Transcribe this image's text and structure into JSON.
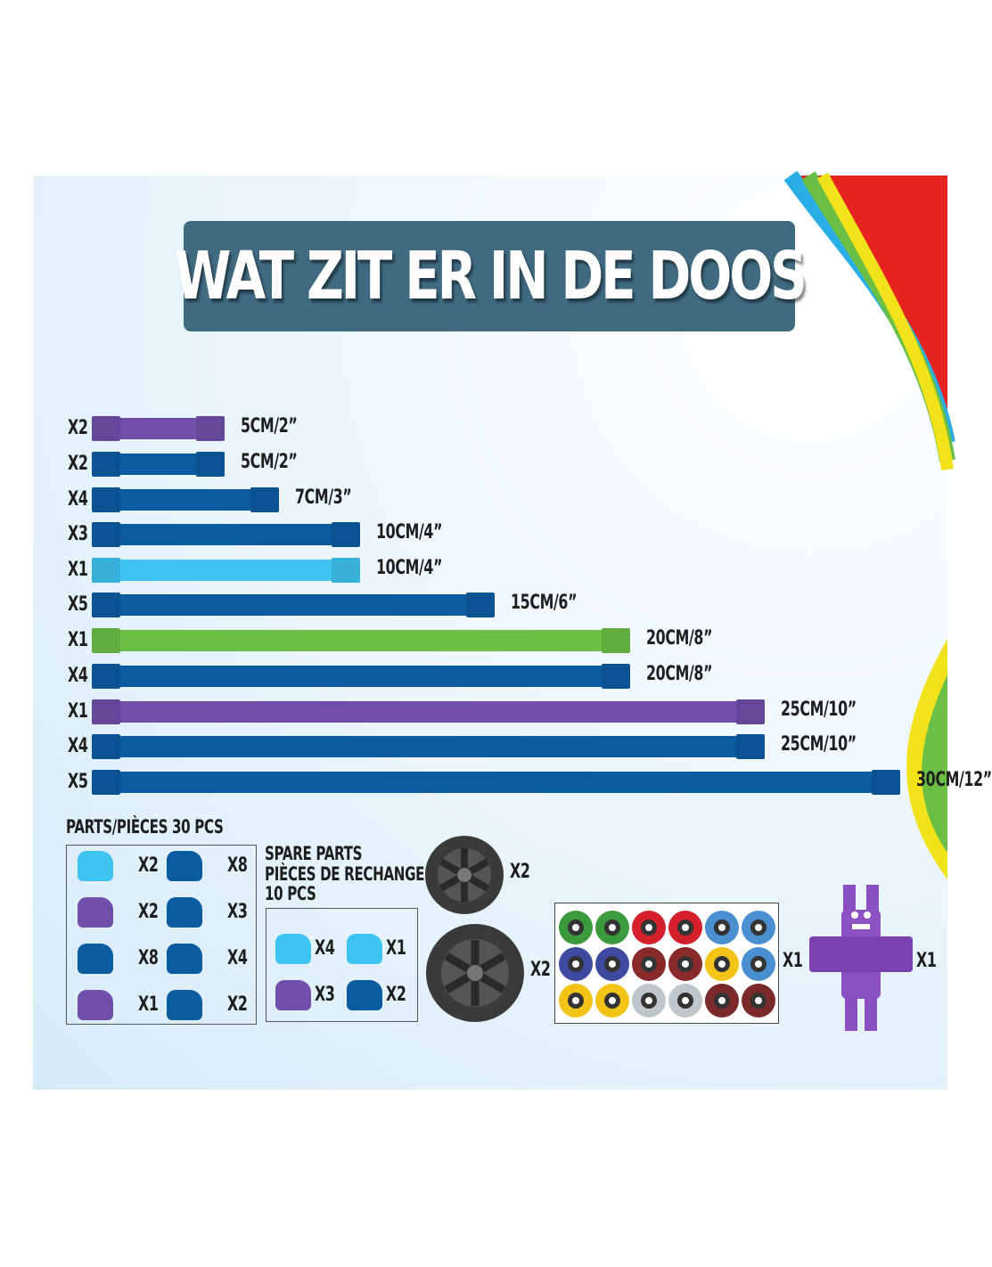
{
  "title": "WAT ZIT ER IN DE DOOS",
  "colors": {
    "purple": "#6f4fa9",
    "blue": "#0b5ba1",
    "light_blue": "#3fc4f2",
    "green": "#6cbf45",
    "title_bg": "#3f6a80"
  },
  "rods": [
    {
      "qty": "X2",
      "size": "5CM/2”",
      "color": "purple",
      "len": 5
    },
    {
      "qty": "X2",
      "size": "5CM/2”",
      "color": "blue",
      "len": 5
    },
    {
      "qty": "X4",
      "size": "7CM/3”",
      "color": "blue",
      "len": 7
    },
    {
      "qty": "X3",
      "size": "10CM/4”",
      "color": "blue",
      "len": 10
    },
    {
      "qty": "X1",
      "size": "10CM/4”",
      "color": "light_blue",
      "len": 10
    },
    {
      "qty": "X5",
      "size": "15CM/6”",
      "color": "blue",
      "len": 15
    },
    {
      "qty": "X1",
      "size": "20CM/8”",
      "color": "green",
      "len": 20
    },
    {
      "qty": "X4",
      "size": "20CM/8”",
      "color": "blue",
      "len": 20
    },
    {
      "qty": "X1",
      "size": "25CM/10”",
      "color": "purple",
      "len": 25
    },
    {
      "qty": "X4",
      "size": "25CM/10”",
      "color": "blue",
      "len": 25
    },
    {
      "qty": "X5",
      "size": "30CM/12”",
      "color": "blue",
      "len": 30
    }
  ],
  "parts": {
    "heading": "PARTS/PIÈCES   30 PCS",
    "items": [
      {
        "qty": "X2",
        "color": "light_blue"
      },
      {
        "qty": "X8",
        "color": "blue"
      },
      {
        "qty": "X2",
        "color": "purple"
      },
      {
        "qty": "X3",
        "color": "blue"
      },
      {
        "qty": "X8",
        "color": "blue"
      },
      {
        "qty": "X4",
        "color": "blue"
      },
      {
        "qty": "X1",
        "color": "purple"
      },
      {
        "qty": "X2",
        "color": "blue"
      }
    ]
  },
  "spare": {
    "line1": "SPARE PARTS",
    "line2": "PIÈCES DE RECHANGE",
    "line3": "10 PCS",
    "items": [
      {
        "qty": "X4",
        "color": "light_blue"
      },
      {
        "qty": "X1",
        "color": "light_blue"
      },
      {
        "qty": "X3",
        "color": "purple"
      },
      {
        "qty": "X2",
        "color": "blue"
      }
    ]
  },
  "wheels": [
    {
      "qty": "X2"
    },
    {
      "qty": "X2"
    }
  ],
  "eyes": {
    "qty": "X1",
    "colors": [
      "#3b9a3b",
      "#3b9a3b",
      "#d3202a",
      "#d3202a",
      "#4a8fd0",
      "#4a8fd0",
      "#3d4aa0",
      "#3d4aa0",
      "#8a2a2a",
      "#8a2a2a",
      "#f2c418",
      "#4a8fd0",
      "#f2c418",
      "#f2c418",
      "#bfc6cc",
      "#bfc6cc",
      "#7a2a2a",
      "#7a2a2a"
    ]
  },
  "figure": {
    "qty": "X1"
  }
}
